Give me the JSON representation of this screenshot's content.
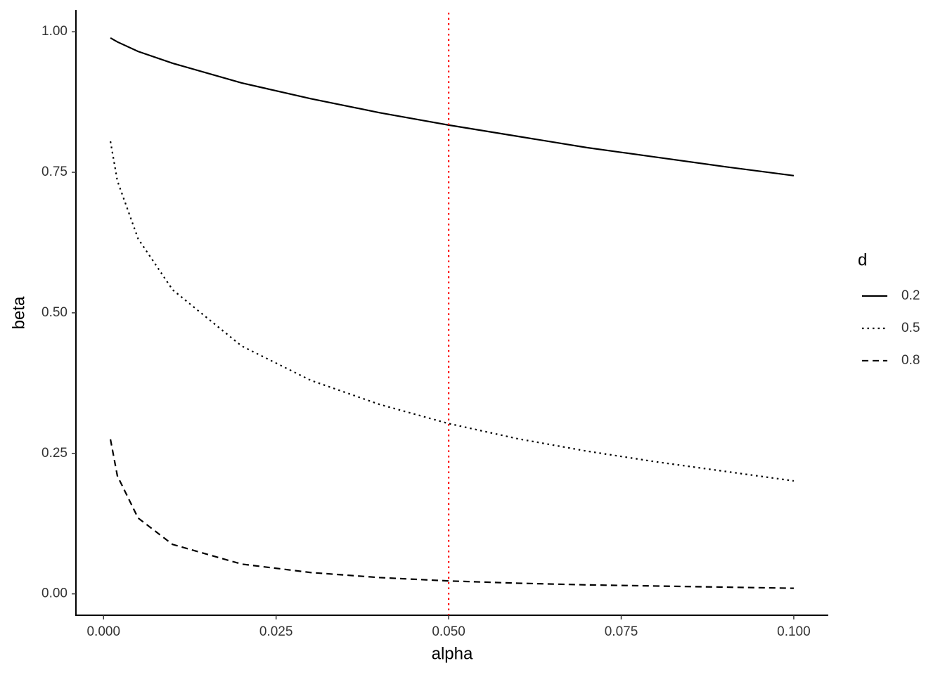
{
  "chart_data": {
    "type": "line",
    "x_label": "alpha",
    "y_label": "beta",
    "x": [
      0.001,
      0.002,
      0.005,
      0.01,
      0.02,
      0.03,
      0.04,
      0.05,
      0.06,
      0.07,
      0.08,
      0.09,
      0.1
    ],
    "series": [
      {
        "name": "0.2",
        "color": "#000000",
        "linetype": "solid",
        "values": [
          0.989,
          0.982,
          0.965,
          0.944,
          0.909,
          0.881,
          0.856,
          0.834,
          0.814,
          0.794,
          0.777,
          0.76,
          0.744
        ]
      },
      {
        "name": "0.5",
        "color": "#000000",
        "linetype": "dotted",
        "values": [
          0.805,
          0.735,
          0.632,
          0.541,
          0.441,
          0.38,
          0.337,
          0.303,
          0.276,
          0.254,
          0.235,
          0.218,
          0.201
        ]
      },
      {
        "name": "0.8",
        "color": "#000000",
        "linetype": "dashed",
        "values": [
          0.275,
          0.21,
          0.135,
          0.088,
          0.053,
          0.038,
          0.029,
          0.023,
          0.019,
          0.016,
          0.014,
          0.012,
          0.01
        ]
      }
    ],
    "vline": {
      "x": 0.05,
      "color": "#ff0000",
      "linetype": "dotted"
    },
    "legend_title": "d",
    "legend_position": "right",
    "grid": false,
    "xlim": [
      -0.004,
      0.105
    ],
    "ylim": [
      -0.038,
      1.039
    ],
    "xticks": [
      {
        "value": 0,
        "label": "0.000"
      },
      {
        "value": 0.025,
        "label": "0.025"
      },
      {
        "value": 0.05,
        "label": "0.050"
      },
      {
        "value": 0.075,
        "label": "0.075"
      },
      {
        "value": 0.1,
        "label": "0.100"
      }
    ],
    "yticks": [
      {
        "value": 0,
        "label": "0.00"
      },
      {
        "value": 0.25,
        "label": "0.25"
      },
      {
        "value": 0.5,
        "label": "0.50"
      },
      {
        "value": 0.75,
        "label": "0.75"
      },
      {
        "value": 1,
        "label": "1.00"
      }
    ]
  }
}
